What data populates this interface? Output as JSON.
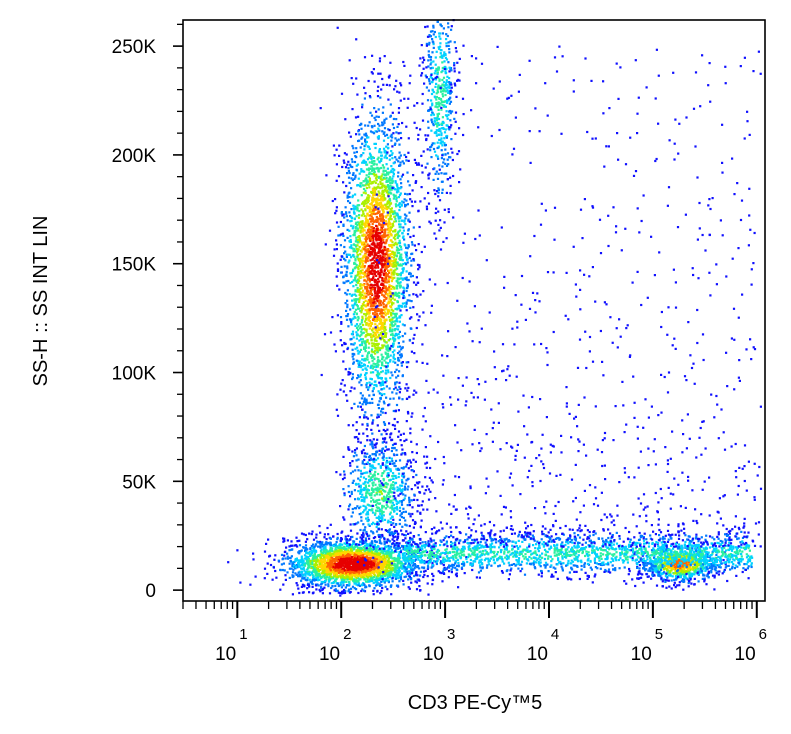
{
  "chart_data": {
    "type": "scatter",
    "subtype": "flow-cytometry-density-dot-plot",
    "xlabel": "CD3 PE-Cy™5",
    "ylabel": "SS-H :: SS INT LIN",
    "x_scale": "log",
    "xlim": [
      3,
      1200000
    ],
    "ylim": [
      -5000,
      262000
    ],
    "x_ticks": [
      {
        "value": 10,
        "base": "10",
        "exp": "1"
      },
      {
        "value": 100,
        "base": "10",
        "exp": "2"
      },
      {
        "value": 1000,
        "base": "10",
        "exp": "3"
      },
      {
        "value": 10000,
        "base": "10",
        "exp": "4"
      },
      {
        "value": 100000,
        "base": "10",
        "exp": "5"
      },
      {
        "value": 1000000,
        "base": "10",
        "exp": "6"
      }
    ],
    "y_ticks": [
      {
        "value": 0,
        "label": "0"
      },
      {
        "value": 50000,
        "label": "50K"
      },
      {
        "value": 100000,
        "label": "100K"
      },
      {
        "value": 150000,
        "label": "150K"
      },
      {
        "value": 200000,
        "label": "200K"
      },
      {
        "value": 250000,
        "label": "250K"
      }
    ],
    "grid": false,
    "density_colors": [
      "#1010ff",
      "#0078ff",
      "#00d2ff",
      "#28f0a0",
      "#aaf000",
      "#ffd700",
      "#ff6400",
      "#e60000"
    ],
    "populations": [
      {
        "id": "cd3neg-low-ss",
        "center_x": 130,
        "center_y": 12000,
        "spread_log10_x": 0.32,
        "spread_y": 5500,
        "n": 2600,
        "peak_density": 1.0
      },
      {
        "id": "granulocytes",
        "center_x": 220,
        "center_y": 150000,
        "spread_log10_x": 0.16,
        "spread_y": 34000,
        "n": 3000,
        "peak_density": 0.95
      },
      {
        "id": "monocytes",
        "center_x": 240,
        "center_y": 45000,
        "spread_log10_x": 0.18,
        "spread_y": 13000,
        "n": 700,
        "peak_density": 0.45
      },
      {
        "id": "high-ss-streak",
        "center_x": 900,
        "center_y": 228000,
        "spread_log10_x": 0.08,
        "spread_y": 25000,
        "n": 500,
        "peak_density": 0.4
      },
      {
        "id": "cd3pos-lymphocytes",
        "center_x": 180000,
        "center_y": 12000,
        "spread_log10_x": 0.18,
        "spread_y": 4000,
        "n": 800,
        "peak_density": 0.8
      },
      {
        "id": "low-ss-band",
        "x_range": [
          400,
          900000
        ],
        "center_y": 17000,
        "spread_y": 5000,
        "n": 1800,
        "peak_density": 0.35
      },
      {
        "id": "scattered-events",
        "x_range": [
          200,
          1100000
        ],
        "y_range": [
          20000,
          250000
        ],
        "n": 1000,
        "peak_density": 0.1
      }
    ]
  }
}
